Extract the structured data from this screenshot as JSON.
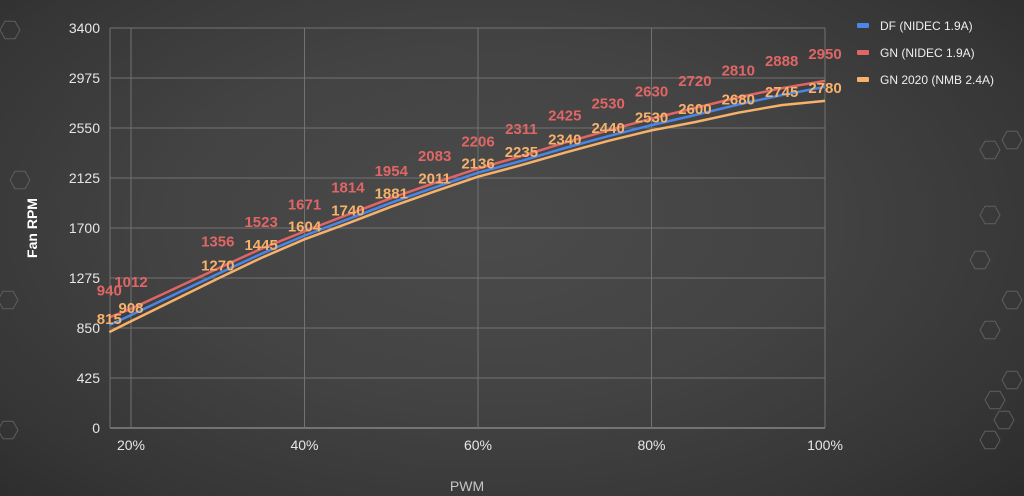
{
  "chart_data": {
    "type": "line",
    "title": "",
    "xlabel": "PWM",
    "ylabel": "Fan RPM",
    "xlim": [
      17.5,
      100
    ],
    "ylim": [
      0,
      3400
    ],
    "x_ticks": [
      "20%",
      "40%",
      "60%",
      "80%",
      "100%"
    ],
    "x_tick_values": [
      20,
      40,
      60,
      80,
      100
    ],
    "y_ticks": [
      0,
      425,
      850,
      1275,
      1700,
      2125,
      2550,
      2975,
      3400
    ],
    "grid": true,
    "legend_position": "right",
    "x": [
      17.5,
      20,
      30,
      35,
      40,
      45,
      50,
      55,
      60,
      65,
      70,
      75,
      80,
      85,
      90,
      95,
      100
    ],
    "series": [
      {
        "name": "DF (NIDEC 1.9A)",
        "color": "#4a86e8",
        "labels_shown": false,
        "values": [
          875,
          960,
          1310,
          1480,
          1635,
          1775,
          1915,
          2045,
          2170,
          2270,
          2380,
          2480,
          2575,
          2660,
          2750,
          2830,
          2900
        ]
      },
      {
        "name": "GN (NIDEC 1.9A)",
        "color": "#e06666",
        "labels_shown": true,
        "values": [
          940,
          1012,
          1356,
          1523,
          1671,
          1814,
          1954,
          2083,
          2206,
          2311,
          2425,
          2530,
          2630,
          2720,
          2810,
          2888,
          2950
        ]
      },
      {
        "name": "GN 2020 (NMB 2.4A)",
        "color": "#f6b26b",
        "labels_shown": true,
        "values": [
          815,
          908,
          1270,
          1445,
          1604,
          1740,
          1881,
          2011,
          2136,
          2235,
          2340,
          2440,
          2530,
          2600,
          2680,
          2745,
          2780
        ]
      }
    ]
  }
}
